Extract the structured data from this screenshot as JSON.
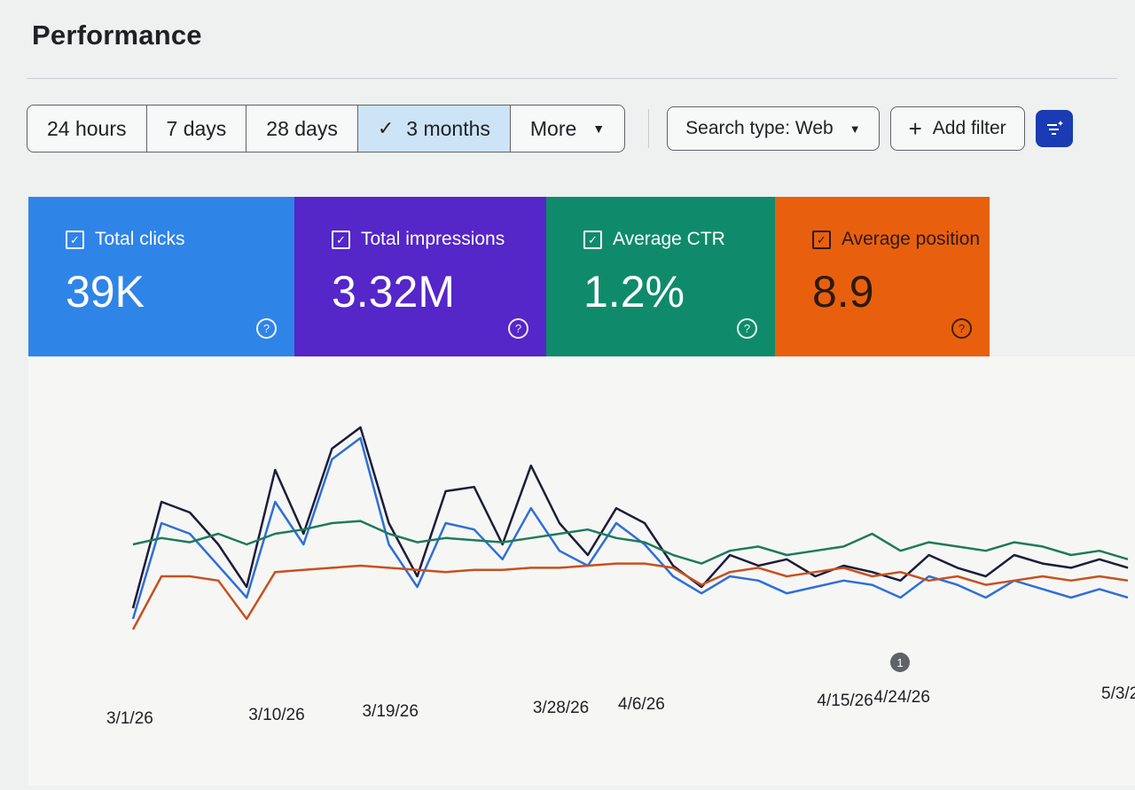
{
  "header": {
    "title": "Performance"
  },
  "date_range": {
    "options": [
      "24 hours",
      "7 days",
      "28 days",
      "3 months"
    ],
    "selected": "3 months",
    "more_label": "More"
  },
  "search_type_label": "Search type: Web",
  "add_filter_label": "Add filter",
  "metrics": [
    {
      "label": "Total clicks",
      "value": "39K",
      "color": "#2f84e8"
    },
    {
      "label": "Total impressions",
      "value": "3.32M",
      "color": "#5526c8"
    },
    {
      "label": "Average CTR",
      "value": "1.2%",
      "color": "#0f8b6b"
    },
    {
      "label": "Average position",
      "value": "8.9",
      "color": "#e8600e"
    }
  ],
  "annotation_label": "1",
  "chart_data": {
    "type": "line",
    "x": [
      "3/1/26",
      "3/3/26",
      "3/5/26",
      "3/7/26",
      "3/9/26",
      "3/11/26",
      "3/13/26",
      "3/15/26",
      "3/17/26",
      "3/19/26",
      "3/21/26",
      "3/23/26",
      "3/25/26",
      "3/27/26",
      "3/29/26",
      "3/31/26",
      "4/2/26",
      "4/4/26",
      "4/6/26",
      "4/8/26",
      "4/10/26",
      "4/12/26",
      "4/14/26",
      "4/16/26",
      "4/18/26",
      "4/20/26",
      "4/22/26",
      "4/24/26",
      "4/26/26",
      "4/28/26",
      "4/30/26",
      "5/2/26",
      "5/4/26",
      "5/6/26",
      "5/8/26",
      "5/10/26"
    ],
    "x_tick_labels": [
      "3/1/26",
      "3/10/26",
      "3/19/26",
      "3/28/26",
      "4/6/26",
      "4/15/26",
      "4/24/26",
      "5/3/26"
    ],
    "series": [
      {
        "name": "Total clicks",
        "color": "#2f6fd6",
        "values": [
          0.1,
          0.55,
          0.5,
          0.35,
          0.2,
          0.65,
          0.45,
          0.85,
          0.95,
          0.45,
          0.25,
          0.55,
          0.52,
          0.38,
          0.62,
          0.42,
          0.35,
          0.55,
          0.45,
          0.3,
          0.22,
          0.3,
          0.28,
          0.22,
          0.25,
          0.28,
          0.26,
          0.2,
          0.3,
          0.26,
          0.2,
          0.28,
          0.24,
          0.2,
          0.24,
          0.2
        ]
      },
      {
        "name": "Total impressions",
        "color": "#1c1c3a",
        "values": [
          0.15,
          0.65,
          0.6,
          0.45,
          0.25,
          0.8,
          0.5,
          0.9,
          1.0,
          0.55,
          0.3,
          0.7,
          0.72,
          0.45,
          0.82,
          0.55,
          0.4,
          0.62,
          0.55,
          0.35,
          0.25,
          0.4,
          0.35,
          0.38,
          0.3,
          0.35,
          0.32,
          0.28,
          0.4,
          0.34,
          0.3,
          0.4,
          0.36,
          0.34,
          0.38,
          0.34
        ]
      },
      {
        "name": "Average CTR",
        "color": "#1e7a5a",
        "values": [
          0.45,
          0.48,
          0.46,
          0.5,
          0.45,
          0.5,
          0.52,
          0.55,
          0.56,
          0.5,
          0.46,
          0.48,
          0.47,
          0.46,
          0.48,
          0.5,
          0.52,
          0.48,
          0.46,
          0.4,
          0.36,
          0.42,
          0.44,
          0.4,
          0.42,
          0.44,
          0.5,
          0.42,
          0.46,
          0.44,
          0.42,
          0.46,
          0.44,
          0.4,
          0.42,
          0.38
        ]
      },
      {
        "name": "Average position",
        "color": "#c8501e",
        "values": [
          0.05,
          0.3,
          0.3,
          0.28,
          0.1,
          0.32,
          0.33,
          0.34,
          0.35,
          0.34,
          0.33,
          0.32,
          0.33,
          0.33,
          0.34,
          0.34,
          0.35,
          0.36,
          0.36,
          0.34,
          0.26,
          0.32,
          0.34,
          0.3,
          0.32,
          0.34,
          0.3,
          0.32,
          0.28,
          0.3,
          0.26,
          0.28,
          0.3,
          0.28,
          0.3,
          0.28
        ]
      }
    ]
  }
}
